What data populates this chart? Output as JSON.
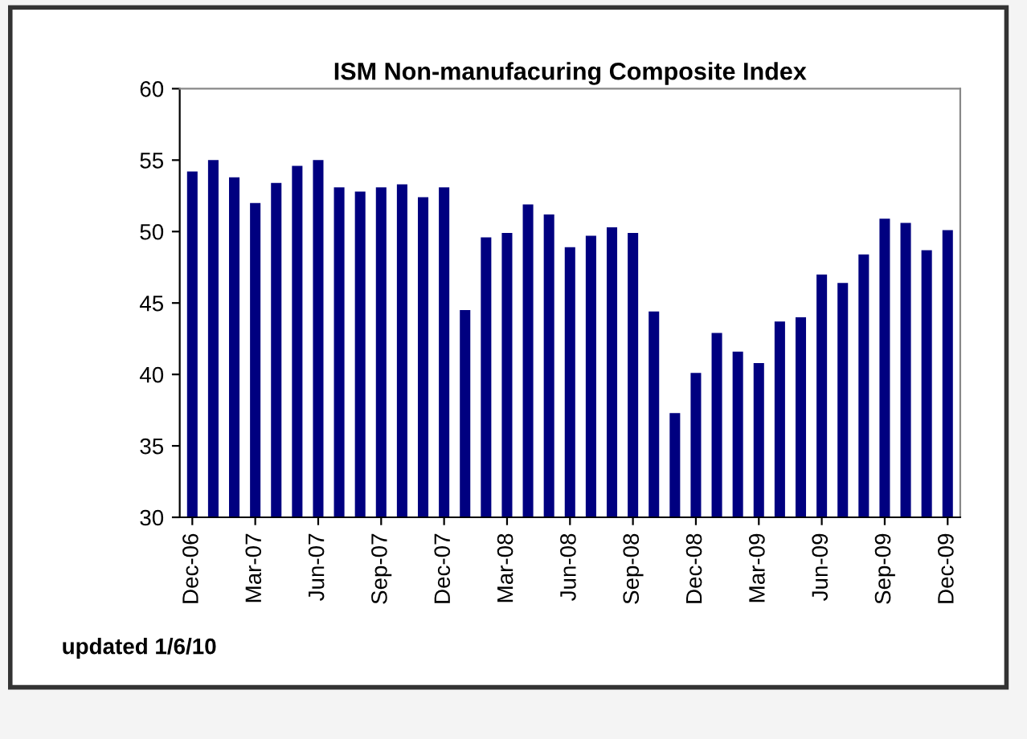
{
  "chart_data": {
    "type": "bar",
    "title": "ISM Non-manufacuring Composite Index",
    "categories": [
      "Dec-06",
      null,
      null,
      "Mar-07",
      null,
      null,
      "Jun-07",
      null,
      null,
      "Sep-07",
      null,
      null,
      "Dec-07",
      null,
      null,
      "Mar-08",
      null,
      null,
      "Jun-08",
      null,
      null,
      "Sep-08",
      null,
      null,
      "Dec-08",
      null,
      null,
      "Mar-09",
      null,
      null,
      "Jun-09",
      null,
      null,
      "Sep-09",
      null,
      null,
      "Dec-09"
    ],
    "values": [
      54.2,
      55.0,
      53.8,
      52.0,
      53.4,
      54.6,
      55.0,
      53.1,
      52.8,
      53.1,
      53.3,
      52.4,
      53.1,
      44.5,
      49.6,
      49.9,
      51.9,
      51.2,
      48.9,
      49.7,
      50.3,
      49.9,
      44.4,
      37.3,
      40.1,
      42.9,
      41.6,
      40.8,
      43.7,
      44.0,
      47.0,
      46.4,
      48.4,
      50.9,
      50.6,
      48.7,
      50.1
    ],
    "color": "#000080",
    "ylim": [
      30,
      60
    ],
    "yticks": [
      30,
      35,
      40,
      45,
      50,
      55,
      60
    ],
    "grid": false,
    "annotations": [
      "updated 1/6/10"
    ]
  }
}
